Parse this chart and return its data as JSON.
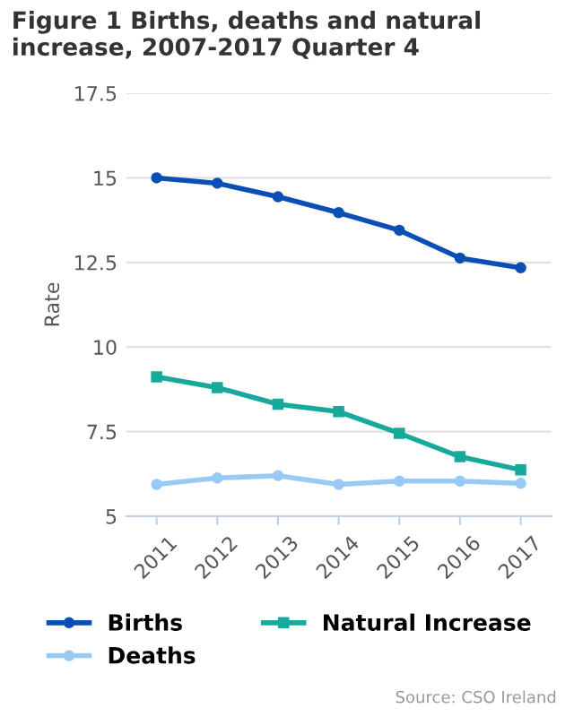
{
  "chart_data": {
    "type": "line",
    "title": "Figure 1 Births, deaths and natural increase, 2007-2017 Quarter 4",
    "ylabel": "Rate",
    "categories": [
      "2011",
      "2012",
      "2013",
      "2014",
      "2015",
      "2016",
      "2017"
    ],
    "series": [
      {
        "name": "Births",
        "color": "#0a4fb5",
        "marker": "circle",
        "values": [
          15.0,
          14.84,
          14.44,
          13.97,
          13.45,
          12.63,
          12.34
        ]
      },
      {
        "name": "Deaths",
        "color": "#99c9f5",
        "marker": "circle",
        "values": [
          5.94,
          6.13,
          6.2,
          5.94,
          6.04,
          6.04,
          5.97
        ]
      },
      {
        "name": "Natural Increase",
        "color": "#17a99b",
        "marker": "square",
        "values": [
          9.12,
          8.8,
          8.31,
          8.09,
          7.45,
          6.76,
          6.37
        ]
      }
    ],
    "ylim": [
      5,
      17.5
    ],
    "yticks": [
      5,
      7.5,
      10,
      12.5,
      15,
      17.5
    ],
    "grid": "y",
    "legend": "bottom",
    "line_style": "solid",
    "annotations": [
      "Source: CSO Ireland"
    ]
  }
}
